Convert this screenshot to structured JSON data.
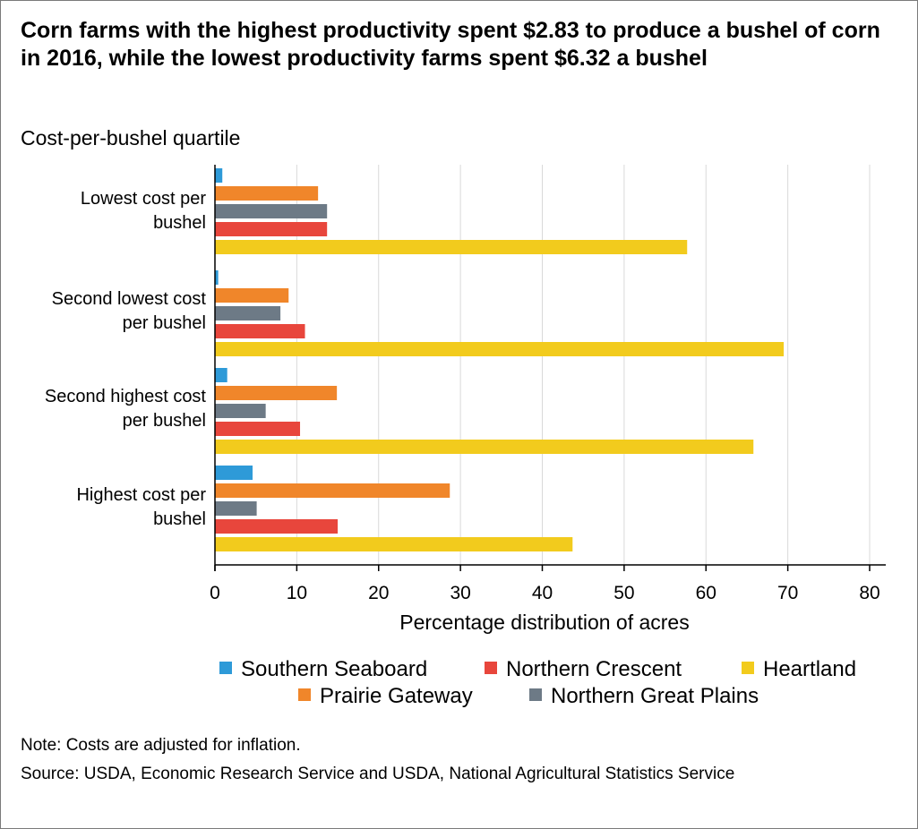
{
  "title": "Corn farms with the highest productivity spent $2.83 to produce a bushel of corn in 2016, while the lowest productivity farms spent $6.32 a bushel",
  "note": "Note: Costs are adjusted for inflation.",
  "source": "Source: USDA, Economic Research Service and USDA, National Agricultural Statistics Service",
  "chart_data": {
    "type": "bar",
    "orientation": "horizontal",
    "title": "Corn farms with the highest productivity spent $2.83 to produce a bushel of corn in 2016, while the lowest productivity farms spent $6.32 a bushel",
    "ylabel": "Cost-per-bushel quartile",
    "xlabel": "Percentage distribution of acres",
    "xlim": [
      0,
      80
    ],
    "xticks": [
      0,
      10,
      20,
      30,
      40,
      50,
      60,
      70,
      80
    ],
    "grid": true,
    "legend_position": "bottom",
    "categories": [
      [
        "Lowest cost per",
        "bushel"
      ],
      [
        "Second lowest cost",
        "per bushel"
      ],
      [
        "Second highest cost",
        "per bushel"
      ],
      [
        "Highest cost per",
        "bushel"
      ]
    ],
    "series": [
      {
        "name": "Southern Seaboard",
        "color": "#2e9ad8",
        "values": [
          0.9,
          0.4,
          1.5,
          4.6
        ]
      },
      {
        "name": "Prairie Gateway",
        "color": "#f0862a",
        "values": [
          12.6,
          9.0,
          14.9,
          28.7
        ]
      },
      {
        "name": "Northern Great Plains",
        "color": "#6d7a86",
        "values": [
          13.7,
          8.0,
          6.2,
          5.1
        ]
      },
      {
        "name": "Northern Crescent",
        "color": "#e8463c",
        "values": [
          13.7,
          11.0,
          10.4,
          15.0
        ]
      },
      {
        "name": "Heartland",
        "color": "#f2cb1d",
        "values": [
          57.7,
          69.5,
          65.8,
          43.7
        ]
      }
    ],
    "legend_order": [
      [
        "Southern Seaboard",
        "Northern Crescent",
        "Heartland"
      ],
      [
        "Prairie Gateway",
        "Northern Great Plains"
      ]
    ]
  }
}
